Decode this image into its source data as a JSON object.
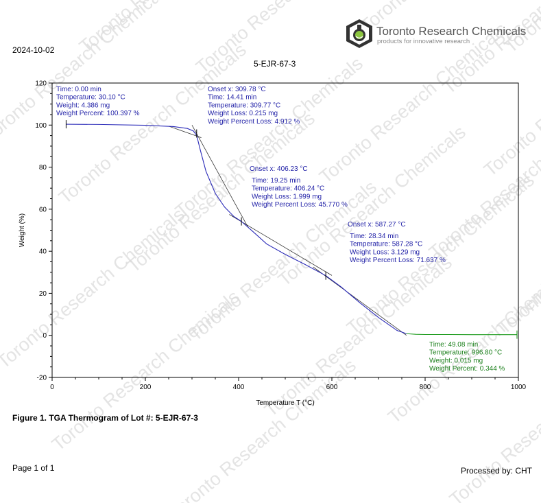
{
  "header": {
    "date": "2024-10-02",
    "sample_id": "5-EJR-67-3",
    "logo": {
      "name": "Toronto Research Chemicals",
      "tagline": "products for innovative research",
      "icon": "flask-logo-icon"
    }
  },
  "watermark_text": "Toronto Research Chemicals",
  "caption": "Figure 1. TGA Thermogram of Lot #: 5-EJR-67-3",
  "footer": {
    "page": "Page 1 of 1",
    "processed_by": "Processed by: CHT"
  },
  "colors": {
    "curve": "#2a2ab8",
    "annotation_blue": "#2323a8",
    "annotation_green": "#1a7f1a",
    "baseline_green": "#1a9a1a"
  },
  "chart_data": {
    "type": "line",
    "title": "5-EJR-67-3",
    "xlabel": "Temperature  T  (°C)",
    "ylabel": "Weight    (%)",
    "xlim": [
      0,
      1000
    ],
    "ylim": [
      -20,
      120
    ],
    "xticks": [
      0,
      200,
      400,
      600,
      800,
      1000
    ],
    "yticks": [
      -20,
      0,
      20,
      40,
      60,
      80,
      100,
      120
    ],
    "grid": false,
    "series": [
      {
        "x": [
          30,
          100,
          200,
          260,
          290,
          303,
          310,
          318,
          330,
          350,
          370,
          390,
          406,
          430,
          460,
          500,
          540,
          587,
          620,
          660,
          700,
          740,
          760,
          780,
          800,
          850,
          900,
          950,
          997
        ],
        "y": [
          100.4,
          100.3,
          99.9,
          99.3,
          98.4,
          97.2,
          95.1,
          88.0,
          78.0,
          67.5,
          61.0,
          56.5,
          54.2,
          49.5,
          43.5,
          38.5,
          34.0,
          28.4,
          23.0,
          15.5,
          8.5,
          2.3,
          0.8,
          0.5,
          0.4,
          0.4,
          0.35,
          0.35,
          0.34
        ]
      }
    ],
    "markers": [
      {
        "x": 30,
        "y": 100.4
      },
      {
        "x": 310,
        "y": 96.0
      },
      {
        "x": 406,
        "y": 54.2
      },
      {
        "x": 587,
        "y": 28.4
      },
      {
        "x": 997,
        "y": 0.34
      }
    ],
    "tangents": [
      {
        "x": [
          250,
          320
        ],
        "y": [
          99.5,
          94.0
        ]
      },
      {
        "x": [
          300,
          420
        ],
        "y": [
          100.0,
          51.5
        ]
      },
      {
        "x": [
          380,
          600
        ],
        "y": [
          57.5,
          28.5
        ]
      },
      {
        "x": [
          560,
          760
        ],
        "y": [
          32.5,
          0.0
        ]
      }
    ],
    "annotations": [
      {
        "color": "blue",
        "lines": [
          "Time: 0.00 min",
          "Temperature: 30.10 °C",
          "Weight: 4.386 mg",
          "Weight Percent: 100.397 %"
        ]
      },
      {
        "color": "blue",
        "lines": [
          "Onset x: 309.78 °C",
          "Time: 14.41 min",
          "Temperature: 309.77 °C",
          "Weight Loss: 0.215 mg",
          "Weight Percent Loss: 4.912 %"
        ]
      },
      {
        "color": "blue",
        "lines": [
          "Onset x: 406.23 °C"
        ]
      },
      {
        "color": "blue",
        "lines": [
          "Time: 19.25 min",
          "Temperature: 406.24 °C",
          "Weight Loss: 1.999 mg",
          "Weight Percent Loss: 45.770 %"
        ]
      },
      {
        "color": "blue",
        "lines": [
          "Onset x: 587.27 °C"
        ]
      },
      {
        "color": "blue",
        "lines": [
          "Time: 28.34 min",
          "Temperature: 587.28 °C",
          "Weight Loss: 3.129 mg",
          "Weight Percent Loss: 71.637 %"
        ]
      },
      {
        "color": "green",
        "lines": [
          "Time: 49.08 min",
          "Temperature: 996.80 °C",
          "Weight: 0.015 mg",
          "Weight Percent: 0.344 %"
        ]
      }
    ]
  }
}
